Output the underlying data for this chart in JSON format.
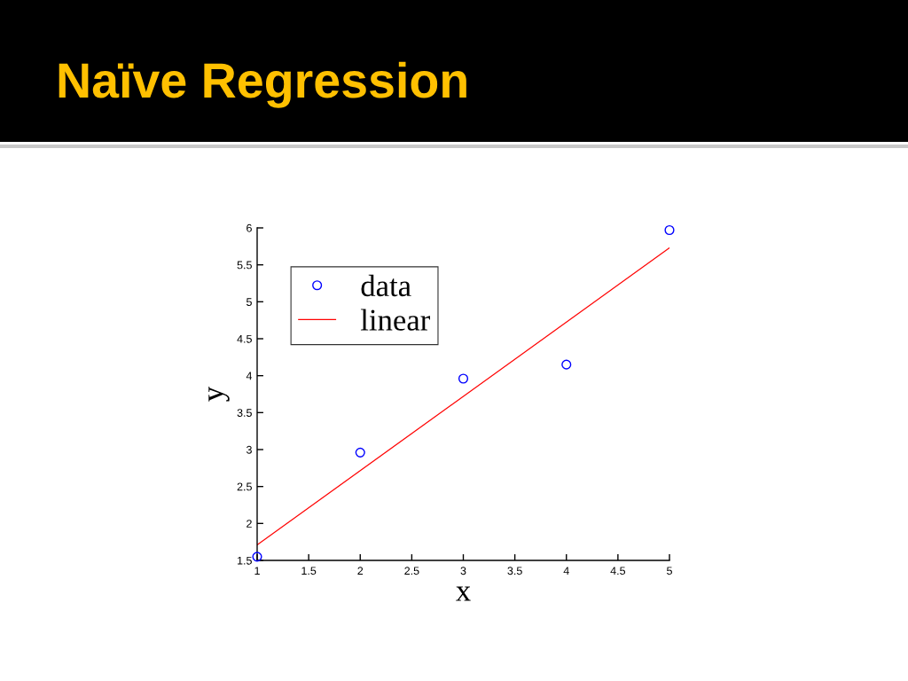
{
  "chart_data": {
    "type": "scatter",
    "title": "Naïve Regression",
    "xlabel": "x",
    "ylabel": "y",
    "x": [
      1,
      2,
      3,
      4,
      5
    ],
    "series": [
      {
        "name": "data",
        "color": "#0000ff",
        "marker": "circle",
        "values": [
          1.55,
          2.96,
          3.96,
          4.15,
          5.97
        ]
      },
      {
        "name": "linear",
        "type": "line",
        "color": "#ff0000",
        "x": [
          1,
          5
        ],
        "values": [
          1.71,
          5.73
        ]
      }
    ],
    "xlim": [
      1,
      5
    ],
    "ylim": [
      1.5,
      6
    ],
    "xticks": [
      1,
      1.5,
      2,
      2.5,
      3,
      3.5,
      4,
      4.5,
      5
    ],
    "yticks": [
      1.5,
      2,
      2.5,
      3,
      3.5,
      4,
      4.5,
      5,
      5.5,
      6
    ],
    "grid": false,
    "legend": "top left"
  }
}
